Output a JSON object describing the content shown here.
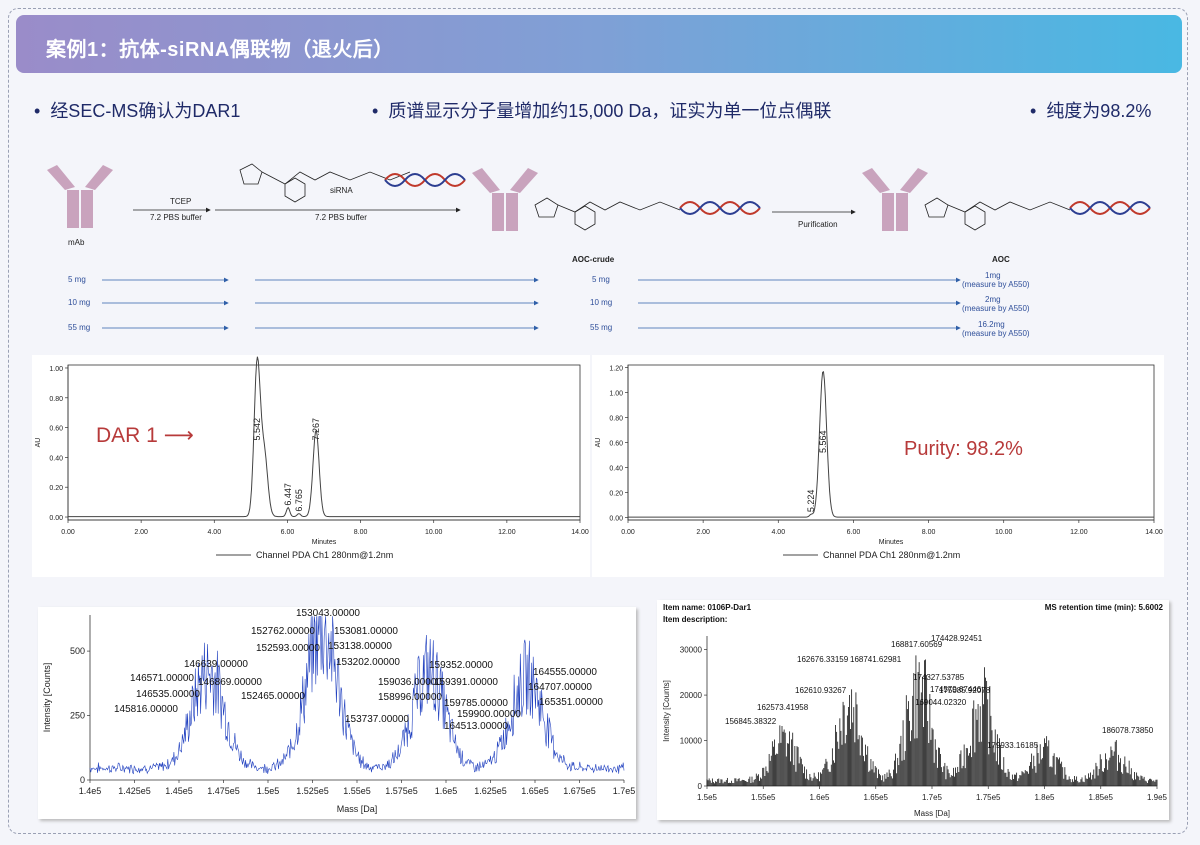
{
  "header": {
    "title": "案例1：抗体-siRNA偶联物（退火后）"
  },
  "bullets": [
    "经SEC-MS确认为DAR1",
    "质谱显示分子量增加约15,000 Da，证实为单一位点偶联",
    "纯度为98.2%"
  ],
  "scheme": {
    "mab_label": "mAb",
    "step1_reagent": "TCEP",
    "step1_buffer": "7.2 PBS buffer",
    "step2_reagent": "siRNA",
    "step2_buffer": "7.2 PBS buffer",
    "crude_label": "AOC-crude",
    "step3_label": "Purification",
    "aoc_label": "AOC",
    "rows": [
      {
        "start": "5 mg",
        "crude": "5 mg",
        "result": "1mg",
        "note": "(measure by A550)"
      },
      {
        "start": "10 mg",
        "crude": "10 mg",
        "result": "2mg",
        "note": "(measure by A550)"
      },
      {
        "start": "55 mg",
        "crude": "55 mg",
        "result": "16.2mg",
        "note": "(measure by A550)"
      }
    ],
    "colors": {
      "antibody": "#c9a3bd",
      "rna_red": "#c0392b",
      "rna_blue": "#2c3e91",
      "arrow": "#2f5fa8"
    }
  },
  "chart_data": [
    {
      "type": "line",
      "id": "sec-crude",
      "xlabel": "Minutes",
      "ylabel": "AU",
      "xlim": [
        0,
        15
      ],
      "ylim": [
        -0.02,
        1.02
      ],
      "xticks": [
        "0.00",
        "2.00",
        "4.00",
        "6.00",
        "8.00",
        "10.00",
        "12.00",
        "14.00"
      ],
      "yticks": [
        "0.00",
        "0.20",
        "0.40",
        "0.60",
        "0.80",
        "1.00"
      ],
      "legend": "Channel PDA Ch1 280nm@1.2nm",
      "annotation": "DAR 1",
      "peak_labels": [
        {
          "x": 5.542,
          "text": "5.542"
        },
        {
          "x": 6.765,
          "text": "6.765"
        },
        {
          "x": 6.447,
          "text": "6.447"
        },
        {
          "x": 7.267,
          "text": "7.267"
        }
      ],
      "peaks": [
        {
          "x": 5.542,
          "y": 1.02
        },
        {
          "x": 5.75,
          "y": 0.42
        },
        {
          "x": 6.447,
          "y": 0.06
        },
        {
          "x": 6.765,
          "y": 0.02
        },
        {
          "x": 7.267,
          "y": 0.58
        }
      ],
      "color": "#444444"
    },
    {
      "type": "line",
      "id": "sec-purified",
      "xlabel": "Minutes",
      "ylabel": "AU",
      "xlim": [
        0,
        15
      ],
      "ylim": [
        -0.02,
        1.22
      ],
      "xticks": [
        "0.00",
        "2.00",
        "4.00",
        "6.00",
        "8.00",
        "10.00",
        "12.00",
        "14.00"
      ],
      "yticks": [
        "0.00",
        "0.20",
        "0.40",
        "0.60",
        "0.80",
        "1.00",
        "1.20"
      ],
      "legend": "Channel PDA Ch1 280nm@1.2nm",
      "annotation": "Purity: 98.2%",
      "peak_labels": [
        {
          "x": 5.224,
          "text": "5.224"
        },
        {
          "x": 5.564,
          "text": "5.564"
        }
      ],
      "peaks": [
        {
          "x": 5.224,
          "y": 0.02
        },
        {
          "x": 5.564,
          "y": 1.17
        }
      ],
      "color": "#444444"
    },
    {
      "type": "line",
      "id": "ms-deconvoluted",
      "xlabel": "Mass [Da]",
      "ylabel": "Intensity [Counts]",
      "xlim": [
        140000,
        170000
      ],
      "ylim": [
        0,
        640
      ],
      "xticks": [
        "1.4e5",
        "1.425e5",
        "1.45e5",
        "1.475e5",
        "1.5e5",
        "1.525e5",
        "1.55e5",
        "1.575e5",
        "1.6e5",
        "1.625e5",
        "1.65e5",
        "1.675e5",
        "1.7e5"
      ],
      "yticks": [
        "0",
        "250",
        "500"
      ],
      "peak_centers": [
        {
          "x": 146639,
          "y": 420
        },
        {
          "x": 153043,
          "y": 600
        },
        {
          "x": 159036,
          "y": 420
        },
        {
          "x": 164555,
          "y": 390
        }
      ],
      "labels": [
        "145816.00000",
        "146535.00000",
        "146571.00000",
        "146639.00000",
        "146869.00000",
        "152465.00000",
        "152593.00000",
        "152762.00000",
        "153043.00000",
        "153081.00000",
        "153138.00000",
        "153202.00000",
        "153737.00000",
        "158996.00000",
        "159036.00000",
        "159352.00000",
        "159391.00000",
        "159785.00000",
        "159900.00000",
        "164513.00000",
        "164555.00000",
        "164707.00000",
        "165351.00000"
      ],
      "color": "#1f3fbf"
    },
    {
      "type": "bar",
      "id": "ms-retention",
      "title_left": "Item name: 0106P-Dar1",
      "title_right": "MS retention time (min): 5.6002",
      "subtitle": "Item description:",
      "xlabel": "Mass [Da]",
      "ylabel": "Intensity [Counts]",
      "xlim": [
        150000,
        190000
      ],
      "ylim": [
        0,
        33000
      ],
      "xticks": [
        "1.5e5",
        "1.55e5",
        "1.6e5",
        "1.65e5",
        "1.7e5",
        "1.75e5",
        "1.8e5",
        "1.85e5",
        "1.9e5"
      ],
      "yticks": [
        "0",
        "10000",
        "20000",
        "30000"
      ],
      "peak_centers": [
        {
          "x": 156845,
          "y": 13500
        },
        {
          "x": 162676,
          "y": 27000
        },
        {
          "x": 168817,
          "y": 30500
        },
        {
          "x": 174428,
          "y": 25000
        },
        {
          "x": 180000,
          "y": 9500
        },
        {
          "x": 186078,
          "y": 9000
        }
      ],
      "labels": [
        "156845.38322",
        "162573.41958",
        "162610.93267",
        "162676.33159",
        "168741.62981",
        "168817.60569",
        "169044.02320",
        "174327.53785",
        "174428.92451",
        "174579.67446",
        "175085.92078",
        "179933.16185",
        "186078.73850"
      ],
      "color": "#111111"
    }
  ]
}
